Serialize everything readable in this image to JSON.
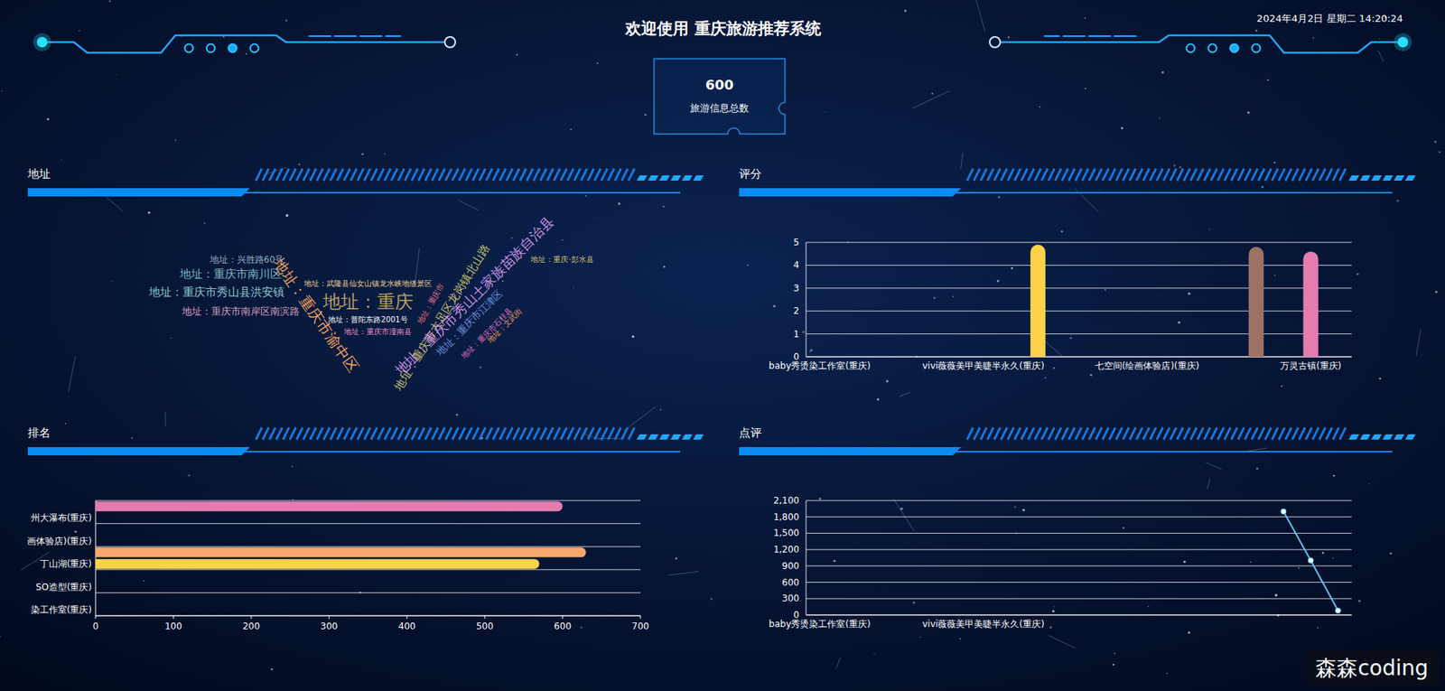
{
  "header": {
    "title": "欢迎使用 重庆旅游推荐系统",
    "datetime": "2024年4月2日 星期二 14:20:24"
  },
  "stat": {
    "value": 600,
    "label": "旅游信息总数"
  },
  "chart_data": [
    {
      "type": "wordcloud",
      "title": "地址",
      "words": [
        {
          "text": "地址：兴胜路60号",
          "weight": 2,
          "color": "#8fb0c0"
        },
        {
          "text": "地址：重庆市南川区",
          "weight": 4,
          "color": "#7fbac8"
        },
        {
          "text": "地址：重庆市秀山县洪安镇",
          "weight": 4,
          "color": "#8cc8d0"
        },
        {
          "text": "地址：重庆市南岸区南滨路",
          "weight": 3,
          "color": "#d8a0b8"
        },
        {
          "text": "地址：重庆市渝中区",
          "weight": 7,
          "color": "#f0a060"
        },
        {
          "text": "地址：武隆县仙女山镇龙水峡地缝景区",
          "weight": 1,
          "color": "#e8d090"
        },
        {
          "text": "地址：重庆",
          "weight": 10,
          "color": "#b8a060"
        },
        {
          "text": "地址：普陀东路2001号",
          "weight": 1,
          "color": "#ffffff"
        },
        {
          "text": "地址：重庆市潼南县",
          "weight": 1,
          "color": "#e890c8"
        },
        {
          "text": "地址：重庆市",
          "weight": 1,
          "color": "#e87080"
        },
        {
          "text": "地址：重庆市大足区龙岗镇北山路",
          "weight": 4,
          "color": "#c8c070"
        },
        {
          "text": "地址：重庆市秀山土家族苗族自治县",
          "weight": 6,
          "color": "#c890e0"
        },
        {
          "text": "地址：重庆市江津区",
          "weight": 3,
          "color": "#7090e0"
        },
        {
          "text": "地址：重庆市石柱县",
          "weight": 1,
          "color": "#e070c0"
        },
        {
          "text": "地址：文武街",
          "weight": 1,
          "color": "#f0a060"
        },
        {
          "text": "地址：重庆·彭水县",
          "weight": 1,
          "color": "#d0c070"
        }
      ]
    },
    {
      "type": "bar",
      "title": "评分",
      "categories": [
        "baby秀烫染工作室(重庆)",
        null,
        null,
        null,
        null,
        null,
        "vivi薇薇美甲美睫半永久(重庆)",
        null,
        null,
        null,
        null,
        null,
        "七空间(绘画体验店)(重庆)",
        null,
        null,
        null,
        null,
        null,
        "万灵古镇(重庆)",
        null
      ],
      "values": [
        null,
        null,
        null,
        null,
        null,
        null,
        null,
        null,
        4.9,
        null,
        null,
        null,
        null,
        null,
        null,
        null,
        4.8,
        null,
        4.6,
        null
      ],
      "colors": [
        null,
        null,
        null,
        null,
        null,
        null,
        null,
        null,
        "#fcd24b",
        null,
        null,
        null,
        null,
        null,
        null,
        null,
        "#9b7364",
        null,
        "#e57caf",
        null
      ],
      "ylim": [
        0,
        5
      ],
      "yticks": [
        0,
        1,
        2,
        3,
        4,
        5
      ],
      "grid": true
    },
    {
      "type": "bar",
      "title": "排名",
      "orientation": "horizontal",
      "categories": [
        "染工作室(重庆)",
        null,
        "SO造型(重庆)",
        null,
        "丁山湖(重庆)",
        null,
        "画体验店)(重庆)",
        null,
        "州大瀑布(重庆)",
        null
      ],
      "values": [
        null,
        null,
        null,
        null,
        570,
        630,
        null,
        null,
        null,
        600
      ],
      "colors": [
        null,
        null,
        null,
        null,
        "#fcd24b",
        "#f7a76b",
        null,
        null,
        null,
        "#e57caf"
      ],
      "xlim": [
        0,
        700
      ],
      "xticks": [
        0,
        100,
        200,
        300,
        400,
        500,
        600,
        700
      ],
      "grid": true
    },
    {
      "type": "line",
      "title": "点评",
      "categories": [
        "baby秀烫染工作室(重庆)",
        null,
        null,
        null,
        null,
        null,
        "vivi薇薇美甲美睫半永久(重庆)",
        null,
        null,
        null,
        null,
        null,
        null,
        null,
        null,
        null,
        null,
        null,
        null,
        null
      ],
      "values": [
        null,
        null,
        null,
        null,
        null,
        null,
        null,
        null,
        null,
        null,
        null,
        null,
        null,
        null,
        null,
        null,
        null,
        1900,
        1000,
        80
      ],
      "color": "#5bc8f5",
      "marker": "circle",
      "ylim": [
        0,
        2100
      ],
      "yticks": [
        0,
        300,
        600,
        900,
        {
          "value": 1200,
          "label": "1,200"
        },
        {
          "value": 1500,
          "label": "1,500"
        },
        {
          "value": 1800,
          "label": "1,800"
        },
        {
          "value": 2100,
          "label": "2,100"
        }
      ],
      "grid": true
    }
  ],
  "watermark": "森森coding"
}
